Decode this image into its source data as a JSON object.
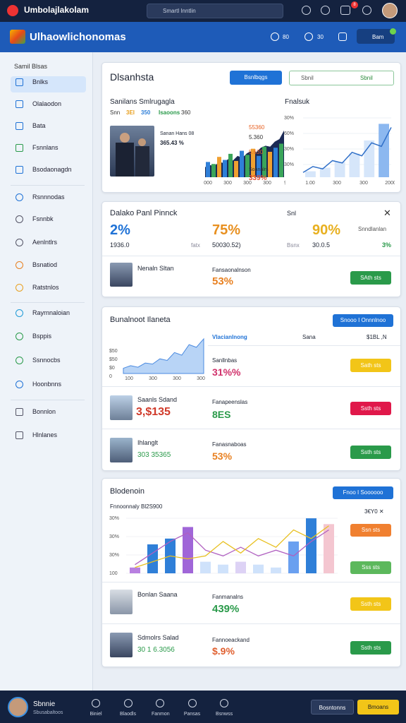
{
  "topbar": {
    "app_name": "Umbolajlakolam",
    "search": "Smartl Inntlin",
    "badge": "8"
  },
  "header": {
    "title": "Ulhaowlichonomas",
    "icon_labels": [
      "80",
      "30"
    ],
    "button": "Bam"
  },
  "sidebar": {
    "heading": "Samil Blsas",
    "items": [
      "Bnlks",
      "Olalaodon",
      "Bata",
      "Fsnnlans",
      "Bsodaonagdn",
      "Rsnnnodas",
      "Fsnnbk",
      "Aenlntlrs",
      "Bsnatiod",
      "Ratstnlos",
      "Rayrnnaloian",
      "Bsppis",
      "Ssnnocbs",
      "Hoonbnns",
      "Bonnlon",
      "Hlnlanes"
    ]
  },
  "card1": {
    "title": "Dlsanhsta",
    "button": "Bsnlbqgs",
    "search": "Sbnil",
    "search_action": "Sbnil",
    "chart_title": "Sanilans Smlrugagla",
    "stats_row": [
      "Snn",
      "3El",
      "350",
      "Isaoons",
      "360"
    ],
    "overlay_label": "Sanan Hans 08",
    "overlay_value": "365.43 %",
    "area_values": [
      20,
      24,
      22,
      30,
      28,
      36,
      33,
      42,
      38,
      47,
      52,
      49,
      58,
      62,
      60,
      70,
      75,
      92
    ],
    "bar_values": [
      30,
      26,
      40,
      34,
      46,
      32,
      52,
      44,
      56,
      42,
      60,
      50,
      58,
      66
    ],
    "bar_colors": [
      "#2f7fd8",
      "#3aa55a",
      "#f0a030"
    ],
    "x_labels": [
      "000",
      "300",
      "300",
      "300",
      "90"
    ],
    "side_labels": [
      "55360",
      "5.360",
      "5.630",
      "Soanalrs",
      "339%"
    ],
    "line_title": "Fnalsuk",
    "line_ytick_labels": [
      "30%",
      "60%",
      "30%",
      "30%"
    ],
    "line_x_labels": [
      "1.00",
      "300",
      "300",
      "2000"
    ],
    "line_values": [
      8,
      18,
      14,
      28,
      24,
      42,
      36,
      58,
      52,
      84
    ],
    "line_bars": [
      10,
      16,
      26,
      40,
      62,
      90
    ]
  },
  "card2": {
    "title": "Dalako Panl Pinnck",
    "side_label": "Snl",
    "stats": [
      {
        "value": "2%",
        "sub": "1936.0",
        "sub2": "fatx"
      },
      {
        "value": "75%",
        "sub": "50030.52)",
        "sub2": "Bsnx"
      },
      {
        "value": "90%",
        "sub": "30.0.5",
        "sub2": "Snndlanlan",
        "extra": "3%"
      }
    ],
    "row": {
      "name": "Nenaln Sltan",
      "label": "Fansaonalnson",
      "value": "53%",
      "button": "SAth sts"
    }
  },
  "card3": {
    "title": "Bunalnoot Ilaneta",
    "button": "Snooo I Onnnlnoo",
    "chart_ytick_labels": [
      "$50",
      "$50",
      "$0",
      "0"
    ],
    "chart_x_labels": [
      "100",
      "300",
      "300",
      "300"
    ],
    "area_values": [
      10,
      15,
      12,
      20,
      18,
      28,
      25,
      40,
      35,
      55,
      50,
      66
    ],
    "columns": [
      "Vlacianlnong",
      "Sana",
      "$1BL ,N"
    ],
    "rows": [
      {
        "label": "Sanllnbas",
        "value": "31%%",
        "button": "Sath sts"
      },
      {
        "name": "Saanls Sdand",
        "name_value": "3,$135",
        "label": "Fanapeenslas",
        "value": "8ES",
        "button": "Ssth sts"
      },
      {
        "name": "Ihlanglt",
        "name_value": "303 35365",
        "label": "Fanasnaboas",
        "value": "53%",
        "button": "Ssth sts"
      }
    ]
  },
  "card4": {
    "title": "Blodenoin",
    "button": "Fnoo I Soooooo",
    "subtitle": "Fnnoonnaly Bl2S900",
    "corner": "3€Y0 ✕",
    "chart_ytick_labels": [
      "30%",
      "30%",
      "30%",
      "100"
    ],
    "bar_values": [
      10,
      50,
      60,
      80,
      20,
      15,
      20,
      15,
      10,
      55,
      95,
      85
    ],
    "bar_colors": [
      "#b880e0",
      "#2f7fd8",
      "#2f7fd8",
      "#a066d8",
      "#cfe2fb",
      "#cfe2fb",
      "#ddd2f5",
      "#cfe2fb",
      "#cfe2fb",
      "#6aa0f0",
      "#2f7fd8",
      "#f4c6d0"
    ],
    "line1": [
      15,
      35,
      55,
      70,
      40,
      30,
      45,
      30,
      40,
      30,
      55,
      75
    ],
    "line2": [
      10,
      20,
      30,
      25,
      30,
      55,
      35,
      60,
      45,
      75,
      60,
      82
    ],
    "side_buttons": [
      "Ssn sts",
      "Sss sts"
    ],
    "rows": [
      {
        "name": "Bonlan Saana",
        "label": "Fanmanalns",
        "value": "439%",
        "button": "Ssth sts"
      },
      {
        "name": "Sdmolrs Salad",
        "name_value": "30 1 6.3056",
        "label": "Fannoeackand",
        "value": "$.9%",
        "button": "Ssth sts"
      }
    ]
  },
  "bottombar": {
    "user": "Sbnnie",
    "user_sub": "Sbusabaltoos",
    "tabs": [
      "Biniel",
      "Blaodls",
      "Fanmon",
      "Pansas",
      "Bsnwss"
    ],
    "button1": "Bosntonns",
    "button2": "Bmoans"
  }
}
